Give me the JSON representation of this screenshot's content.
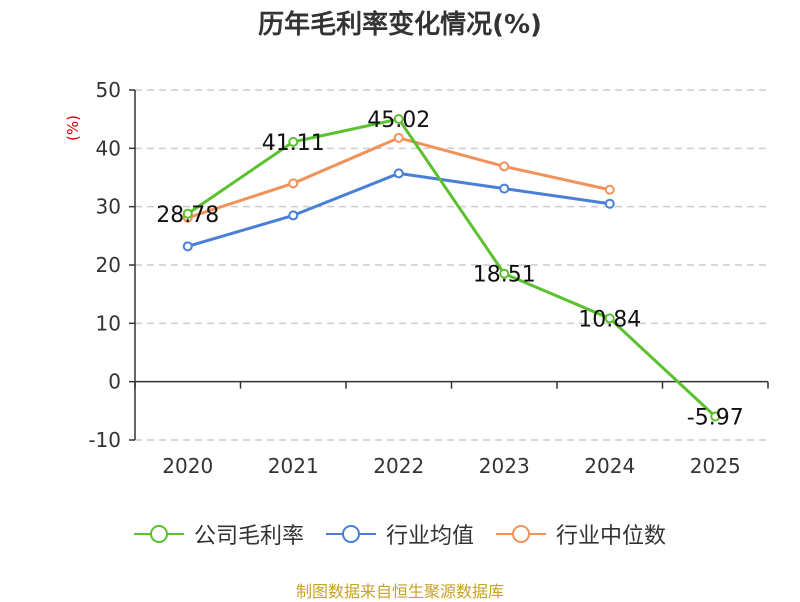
{
  "chart_data": {
    "type": "line",
    "title": "历年毛利率变化情况(%)",
    "ylabel": "(%)",
    "xlabel": "",
    "categories": [
      "2020",
      "2021",
      "2022",
      "2023",
      "2024",
      "2025"
    ],
    "ylim": [
      -10,
      50
    ],
    "yticks": [
      -10,
      0,
      10,
      20,
      30,
      40,
      50
    ],
    "grid": true,
    "legend_position": "bottom",
    "series": [
      {
        "name": "公司毛利率",
        "color": "#5cc12f",
        "values": [
          28.78,
          41.11,
          45.02,
          18.51,
          10.84,
          -5.97
        ],
        "labels": [
          "28.78",
          "41.11",
          "45.02",
          "18.51",
          "10.84",
          "-5.97"
        ]
      },
      {
        "name": "行业均值",
        "color": "#4a7fd8",
        "values": [
          23.2,
          28.5,
          35.7,
          33.1,
          30.5,
          null
        ]
      },
      {
        "name": "行业中位数",
        "color": "#f0925a",
        "values": [
          28.1,
          34.0,
          41.8,
          36.9,
          32.9,
          null
        ]
      }
    ]
  },
  "footer": {
    "source": "制图数据来自恒生聚源数据库"
  },
  "colors": {
    "unit_label": "#d40000",
    "grid": "#cccccc",
    "axis": "#333333"
  }
}
